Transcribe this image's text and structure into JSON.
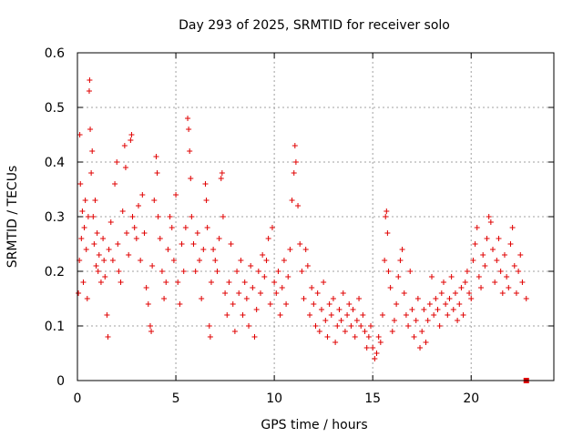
{
  "chart_data": {
    "type": "scatter",
    "title": "Day 293 of 2025, SRMTID for receiver solo",
    "xlabel": "GPS time / hours",
    "ylabel": "SRMTID / TECUs",
    "xlim": [
      0,
      24.2
    ],
    "ylim": [
      0,
      0.6
    ],
    "xticks": [
      0,
      5,
      10,
      15,
      20
    ],
    "xtick_labels": [
      "0",
      "5",
      "10",
      "15",
      "20"
    ],
    "yticks": [
      0,
      0.1,
      0.2,
      0.3,
      0.4,
      0.5,
      0.6
    ],
    "ytick_labels": [
      "0",
      "0.1",
      "0.2",
      "0.3",
      "0.4",
      "0.5",
      "0.6"
    ],
    "grid": true,
    "color": "#e00000",
    "marker": "plus",
    "series": [
      {
        "name": "SRMTID",
        "points": [
          [
            0.05,
            0.16
          ],
          [
            0.1,
            0.22
          ],
          [
            0.12,
            0.45
          ],
          [
            0.15,
            0.36
          ],
          [
            0.2,
            0.26
          ],
          [
            0.25,
            0.31
          ],
          [
            0.3,
            0.18
          ],
          [
            0.35,
            0.28
          ],
          [
            0.4,
            0.33
          ],
          [
            0.45,
            0.24
          ],
          [
            0.5,
            0.15
          ],
          [
            0.55,
            0.3
          ],
          [
            0.6,
            0.53
          ],
          [
            0.62,
            0.55
          ],
          [
            0.65,
            0.46
          ],
          [
            0.7,
            0.38
          ],
          [
            0.75,
            0.42
          ],
          [
            0.8,
            0.3
          ],
          [
            0.85,
            0.25
          ],
          [
            0.9,
            0.33
          ],
          [
            0.95,
            0.21
          ],
          [
            1.0,
            0.27
          ],
          [
            1.05,
            0.2
          ],
          [
            1.1,
            0.23
          ],
          [
            1.2,
            0.18
          ],
          [
            1.3,
            0.26
          ],
          [
            1.35,
            0.22
          ],
          [
            1.4,
            0.19
          ],
          [
            1.5,
            0.12
          ],
          [
            1.55,
            0.08
          ],
          [
            1.6,
            0.24
          ],
          [
            1.7,
            0.29
          ],
          [
            1.8,
            0.22
          ],
          [
            1.9,
            0.36
          ],
          [
            2.0,
            0.4
          ],
          [
            2.05,
            0.25
          ],
          [
            2.1,
            0.2
          ],
          [
            2.2,
            0.18
          ],
          [
            2.3,
            0.31
          ],
          [
            2.4,
            0.43
          ],
          [
            2.45,
            0.39
          ],
          [
            2.5,
            0.27
          ],
          [
            2.6,
            0.23
          ],
          [
            2.7,
            0.44
          ],
          [
            2.75,
            0.45
          ],
          [
            2.8,
            0.3
          ],
          [
            2.9,
            0.28
          ],
          [
            3.0,
            0.26
          ],
          [
            3.1,
            0.32
          ],
          [
            3.2,
            0.22
          ],
          [
            3.3,
            0.34
          ],
          [
            3.4,
            0.27
          ],
          [
            3.5,
            0.17
          ],
          [
            3.6,
            0.14
          ],
          [
            3.7,
            0.1
          ],
          [
            3.75,
            0.09
          ],
          [
            3.8,
            0.21
          ],
          [
            3.9,
            0.33
          ],
          [
            4.0,
            0.41
          ],
          [
            4.05,
            0.38
          ],
          [
            4.1,
            0.3
          ],
          [
            4.2,
            0.26
          ],
          [
            4.3,
            0.2
          ],
          [
            4.4,
            0.15
          ],
          [
            4.5,
            0.18
          ],
          [
            4.6,
            0.24
          ],
          [
            4.7,
            0.3
          ],
          [
            4.8,
            0.28
          ],
          [
            4.9,
            0.22
          ],
          [
            5.0,
            0.34
          ],
          [
            5.1,
            0.18
          ],
          [
            5.2,
            0.14
          ],
          [
            5.3,
            0.25
          ],
          [
            5.4,
            0.2
          ],
          [
            5.5,
            0.28
          ],
          [
            5.6,
            0.48
          ],
          [
            5.65,
            0.46
          ],
          [
            5.7,
            0.42
          ],
          [
            5.75,
            0.37
          ],
          [
            5.8,
            0.3
          ],
          [
            5.9,
            0.25
          ],
          [
            6.0,
            0.2
          ],
          [
            6.1,
            0.27
          ],
          [
            6.2,
            0.22
          ],
          [
            6.3,
            0.15
          ],
          [
            6.4,
            0.24
          ],
          [
            6.5,
            0.36
          ],
          [
            6.55,
            0.33
          ],
          [
            6.6,
            0.28
          ],
          [
            6.7,
            0.1
          ],
          [
            6.75,
            0.08
          ],
          [
            6.8,
            0.18
          ],
          [
            6.9,
            0.24
          ],
          [
            7.0,
            0.22
          ],
          [
            7.1,
            0.2
          ],
          [
            7.2,
            0.26
          ],
          [
            7.3,
            0.37
          ],
          [
            7.35,
            0.38
          ],
          [
            7.4,
            0.3
          ],
          [
            7.5,
            0.16
          ],
          [
            7.6,
            0.12
          ],
          [
            7.7,
            0.18
          ],
          [
            7.8,
            0.25
          ],
          [
            7.9,
            0.14
          ],
          [
            8.0,
            0.09
          ],
          [
            8.1,
            0.2
          ],
          [
            8.2,
            0.16
          ],
          [
            8.3,
            0.22
          ],
          [
            8.4,
            0.12
          ],
          [
            8.5,
            0.18
          ],
          [
            8.6,
            0.15
          ],
          [
            8.7,
            0.1
          ],
          [
            8.8,
            0.21
          ],
          [
            8.9,
            0.17
          ],
          [
            9.0,
            0.08
          ],
          [
            9.1,
            0.13
          ],
          [
            9.2,
            0.2
          ],
          [
            9.3,
            0.16
          ],
          [
            9.4,
            0.23
          ],
          [
            9.5,
            0.19
          ],
          [
            9.6,
            0.22
          ],
          [
            9.7,
            0.26
          ],
          [
            9.8,
            0.14
          ],
          [
            9.9,
            0.28
          ],
          [
            10.0,
            0.18
          ],
          [
            10.1,
            0.16
          ],
          [
            10.2,
            0.2
          ],
          [
            10.3,
            0.12
          ],
          [
            10.4,
            0.17
          ],
          [
            10.5,
            0.22
          ],
          [
            10.6,
            0.14
          ],
          [
            10.7,
            0.19
          ],
          [
            10.8,
            0.24
          ],
          [
            10.9,
            0.33
          ],
          [
            11.0,
            0.38
          ],
          [
            11.05,
            0.43
          ],
          [
            11.1,
            0.4
          ],
          [
            11.2,
            0.32
          ],
          [
            11.3,
            0.25
          ],
          [
            11.4,
            0.2
          ],
          [
            11.5,
            0.15
          ],
          [
            11.6,
            0.24
          ],
          [
            11.7,
            0.21
          ],
          [
            11.8,
            0.12
          ],
          [
            11.9,
            0.17
          ],
          [
            12.0,
            0.14
          ],
          [
            12.1,
            0.1
          ],
          [
            12.2,
            0.16
          ],
          [
            12.3,
            0.09
          ],
          [
            12.4,
            0.13
          ],
          [
            12.5,
            0.18
          ],
          [
            12.6,
            0.11
          ],
          [
            12.7,
            0.08
          ],
          [
            12.8,
            0.14
          ],
          [
            12.9,
            0.12
          ],
          [
            13.0,
            0.15
          ],
          [
            13.1,
            0.07
          ],
          [
            13.2,
            0.1
          ],
          [
            13.3,
            0.13
          ],
          [
            13.4,
            0.11
          ],
          [
            13.5,
            0.16
          ],
          [
            13.6,
            0.09
          ],
          [
            13.7,
            0.12
          ],
          [
            13.8,
            0.14
          ],
          [
            13.9,
            0.1
          ],
          [
            14.0,
            0.13
          ],
          [
            14.1,
            0.08
          ],
          [
            14.2,
            0.11
          ],
          [
            14.3,
            0.15
          ],
          [
            14.4,
            0.1
          ],
          [
            14.5,
            0.12
          ],
          [
            14.6,
            0.09
          ],
          [
            14.7,
            0.06
          ],
          [
            14.8,
            0.08
          ],
          [
            14.9,
            0.1
          ],
          [
            15.0,
            0.06
          ],
          [
            15.1,
            0.04
          ],
          [
            15.2,
            0.05
          ],
          [
            15.3,
            0.08
          ],
          [
            15.4,
            0.07
          ],
          [
            15.5,
            0.12
          ],
          [
            15.6,
            0.22
          ],
          [
            15.65,
            0.3
          ],
          [
            15.7,
            0.31
          ],
          [
            15.75,
            0.27
          ],
          [
            15.8,
            0.2
          ],
          [
            15.9,
            0.17
          ],
          [
            16.0,
            0.09
          ],
          [
            16.1,
            0.11
          ],
          [
            16.2,
            0.14
          ],
          [
            16.3,
            0.19
          ],
          [
            16.4,
            0.22
          ],
          [
            16.5,
            0.24
          ],
          [
            16.6,
            0.16
          ],
          [
            16.7,
            0.12
          ],
          [
            16.8,
            0.1
          ],
          [
            16.9,
            0.2
          ],
          [
            17.0,
            0.13
          ],
          [
            17.1,
            0.08
          ],
          [
            17.2,
            0.11
          ],
          [
            17.3,
            0.15
          ],
          [
            17.4,
            0.06
          ],
          [
            17.5,
            0.09
          ],
          [
            17.6,
            0.13
          ],
          [
            17.7,
            0.07
          ],
          [
            17.8,
            0.11
          ],
          [
            17.9,
            0.14
          ],
          [
            18.0,
            0.19
          ],
          [
            18.1,
            0.12
          ],
          [
            18.2,
            0.15
          ],
          [
            18.3,
            0.13
          ],
          [
            18.4,
            0.1
          ],
          [
            18.5,
            0.16
          ],
          [
            18.6,
            0.18
          ],
          [
            18.7,
            0.14
          ],
          [
            18.8,
            0.12
          ],
          [
            18.9,
            0.15
          ],
          [
            19.0,
            0.19
          ],
          [
            19.1,
            0.13
          ],
          [
            19.2,
            0.16
          ],
          [
            19.3,
            0.11
          ],
          [
            19.4,
            0.14
          ],
          [
            19.5,
            0.17
          ],
          [
            19.6,
            0.12
          ],
          [
            19.7,
            0.18
          ],
          [
            19.8,
            0.2
          ],
          [
            19.9,
            0.16
          ],
          [
            20.0,
            0.15
          ],
          [
            20.1,
            0.22
          ],
          [
            20.2,
            0.25
          ],
          [
            20.3,
            0.28
          ],
          [
            20.4,
            0.19
          ],
          [
            20.5,
            0.17
          ],
          [
            20.6,
            0.23
          ],
          [
            20.7,
            0.21
          ],
          [
            20.8,
            0.26
          ],
          [
            20.9,
            0.3
          ],
          [
            21.0,
            0.29
          ],
          [
            21.1,
            0.24
          ],
          [
            21.2,
            0.18
          ],
          [
            21.3,
            0.22
          ],
          [
            21.4,
            0.26
          ],
          [
            21.5,
            0.2
          ],
          [
            21.6,
            0.16
          ],
          [
            21.7,
            0.23
          ],
          [
            21.8,
            0.19
          ],
          [
            21.9,
            0.17
          ],
          [
            22.0,
            0.25
          ],
          [
            22.1,
            0.28
          ],
          [
            22.2,
            0.21
          ],
          [
            22.3,
            0.16
          ],
          [
            22.4,
            0.2
          ],
          [
            22.5,
            0.23
          ],
          [
            22.6,
            0.18
          ],
          [
            22.8,
            0.15
          ]
        ]
      }
    ],
    "end_marker": [
      22.8,
      0.0
    ]
  }
}
